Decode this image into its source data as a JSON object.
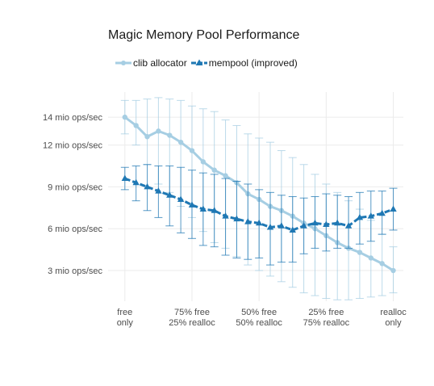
{
  "colors": {
    "clib": "#a6cee3",
    "mempool": "#1f78b4",
    "grid": "#ebebeb",
    "text": "#4d4d4d"
  },
  "chart_data": {
    "type": "line",
    "title": "Magic Memory Pool Performance",
    "xlabel": "",
    "ylabel": "",
    "legend_position": "top-left",
    "grid": true,
    "x_positions": [
      0,
      1,
      2,
      3,
      4
    ],
    "x_tick_labels": [
      [
        "free",
        "only"
      ],
      [
        "75% free",
        "25% realloc"
      ],
      [
        "50% free",
        "50% realloc"
      ],
      [
        "25% free",
        "75% realloc"
      ],
      [
        "realloc",
        "only"
      ]
    ],
    "y_ticks": [
      3,
      6,
      9,
      12,
      14
    ],
    "y_tick_labels": [
      "3 mio ops/sec",
      "6 mio ops/sec",
      "9 mio ops/sec",
      "12 mio ops/sec",
      "14 mio ops/sec"
    ],
    "ylim": [
      0.8,
      15.8
    ],
    "xlim": [
      -0.25,
      4.15
    ],
    "series": [
      {
        "name": "clib allocator",
        "color": "#a6cee3",
        "marker": "circle",
        "x": [
          0,
          0.1667,
          0.3333,
          0.5,
          0.6667,
          0.8333,
          1.0,
          1.1667,
          1.3333,
          1.5,
          1.6667,
          1.8333,
          2.0,
          2.1667,
          2.3333,
          2.5,
          2.6667,
          2.8333,
          3.0,
          3.1667,
          3.3333,
          3.5,
          3.6667,
          3.8333,
          4.0
        ],
        "y": [
          14.0,
          13.4,
          12.6,
          13.0,
          12.7,
          12.2,
          11.6,
          10.8,
          10.2,
          9.8,
          9.3,
          8.5,
          8.1,
          7.6,
          7.3,
          6.9,
          6.4,
          6.0,
          5.5,
          5.0,
          4.6,
          4.3,
          3.9,
          3.5,
          3.0
        ],
        "y_low": [
          12.8,
          12.0,
          10.6,
          9.2,
          8.6,
          7.6,
          6.8,
          5.8,
          5.0,
          4.6,
          4.0,
          3.4,
          3.0,
          2.6,
          2.2,
          1.8,
          1.4,
          1.2,
          1.0,
          0.9,
          0.9,
          1.0,
          1.1,
          1.2,
          1.4
        ],
        "y_high": [
          15.2,
          15.2,
          15.3,
          15.4,
          15.3,
          15.2,
          14.8,
          14.6,
          14.4,
          13.8,
          13.4,
          12.8,
          12.5,
          12.2,
          11.6,
          11.1,
          10.6,
          9.9,
          9.2,
          8.6,
          8.0,
          7.4,
          6.6,
          5.6,
          4.7
        ]
      },
      {
        "name": "mempool (improved)",
        "color": "#1f78b4",
        "marker": "triangle",
        "x": [
          0,
          0.1667,
          0.3333,
          0.5,
          0.6667,
          0.8333,
          1.0,
          1.1667,
          1.3333,
          1.5,
          1.6667,
          1.8333,
          2.0,
          2.1667,
          2.3333,
          2.5,
          2.6667,
          2.8333,
          3.0,
          3.1667,
          3.3333,
          3.5,
          3.6667,
          3.8333,
          4.0
        ],
        "y": [
          9.6,
          9.3,
          9.0,
          8.7,
          8.4,
          8.1,
          7.7,
          7.4,
          7.3,
          6.9,
          6.7,
          6.5,
          6.4,
          6.1,
          6.2,
          5.9,
          6.2,
          6.4,
          6.3,
          6.4,
          6.2,
          6.8,
          6.9,
          7.1,
          7.4
        ],
        "y_low": [
          8.8,
          8.0,
          7.3,
          6.8,
          6.2,
          5.7,
          5.3,
          4.8,
          4.7,
          4.1,
          3.9,
          3.8,
          3.9,
          3.4,
          3.6,
          3.6,
          4.2,
          4.6,
          4.4,
          4.6,
          4.6,
          4.9,
          5.1,
          5.6,
          5.9
        ],
        "y_high": [
          10.4,
          10.5,
          10.6,
          10.5,
          10.5,
          10.4,
          10.2,
          10.0,
          9.9,
          9.6,
          9.4,
          9.2,
          8.8,
          8.6,
          8.4,
          8.3,
          8.2,
          8.3,
          8.5,
          8.4,
          8.3,
          8.6,
          8.7,
          8.7,
          8.9
        ]
      }
    ]
  }
}
